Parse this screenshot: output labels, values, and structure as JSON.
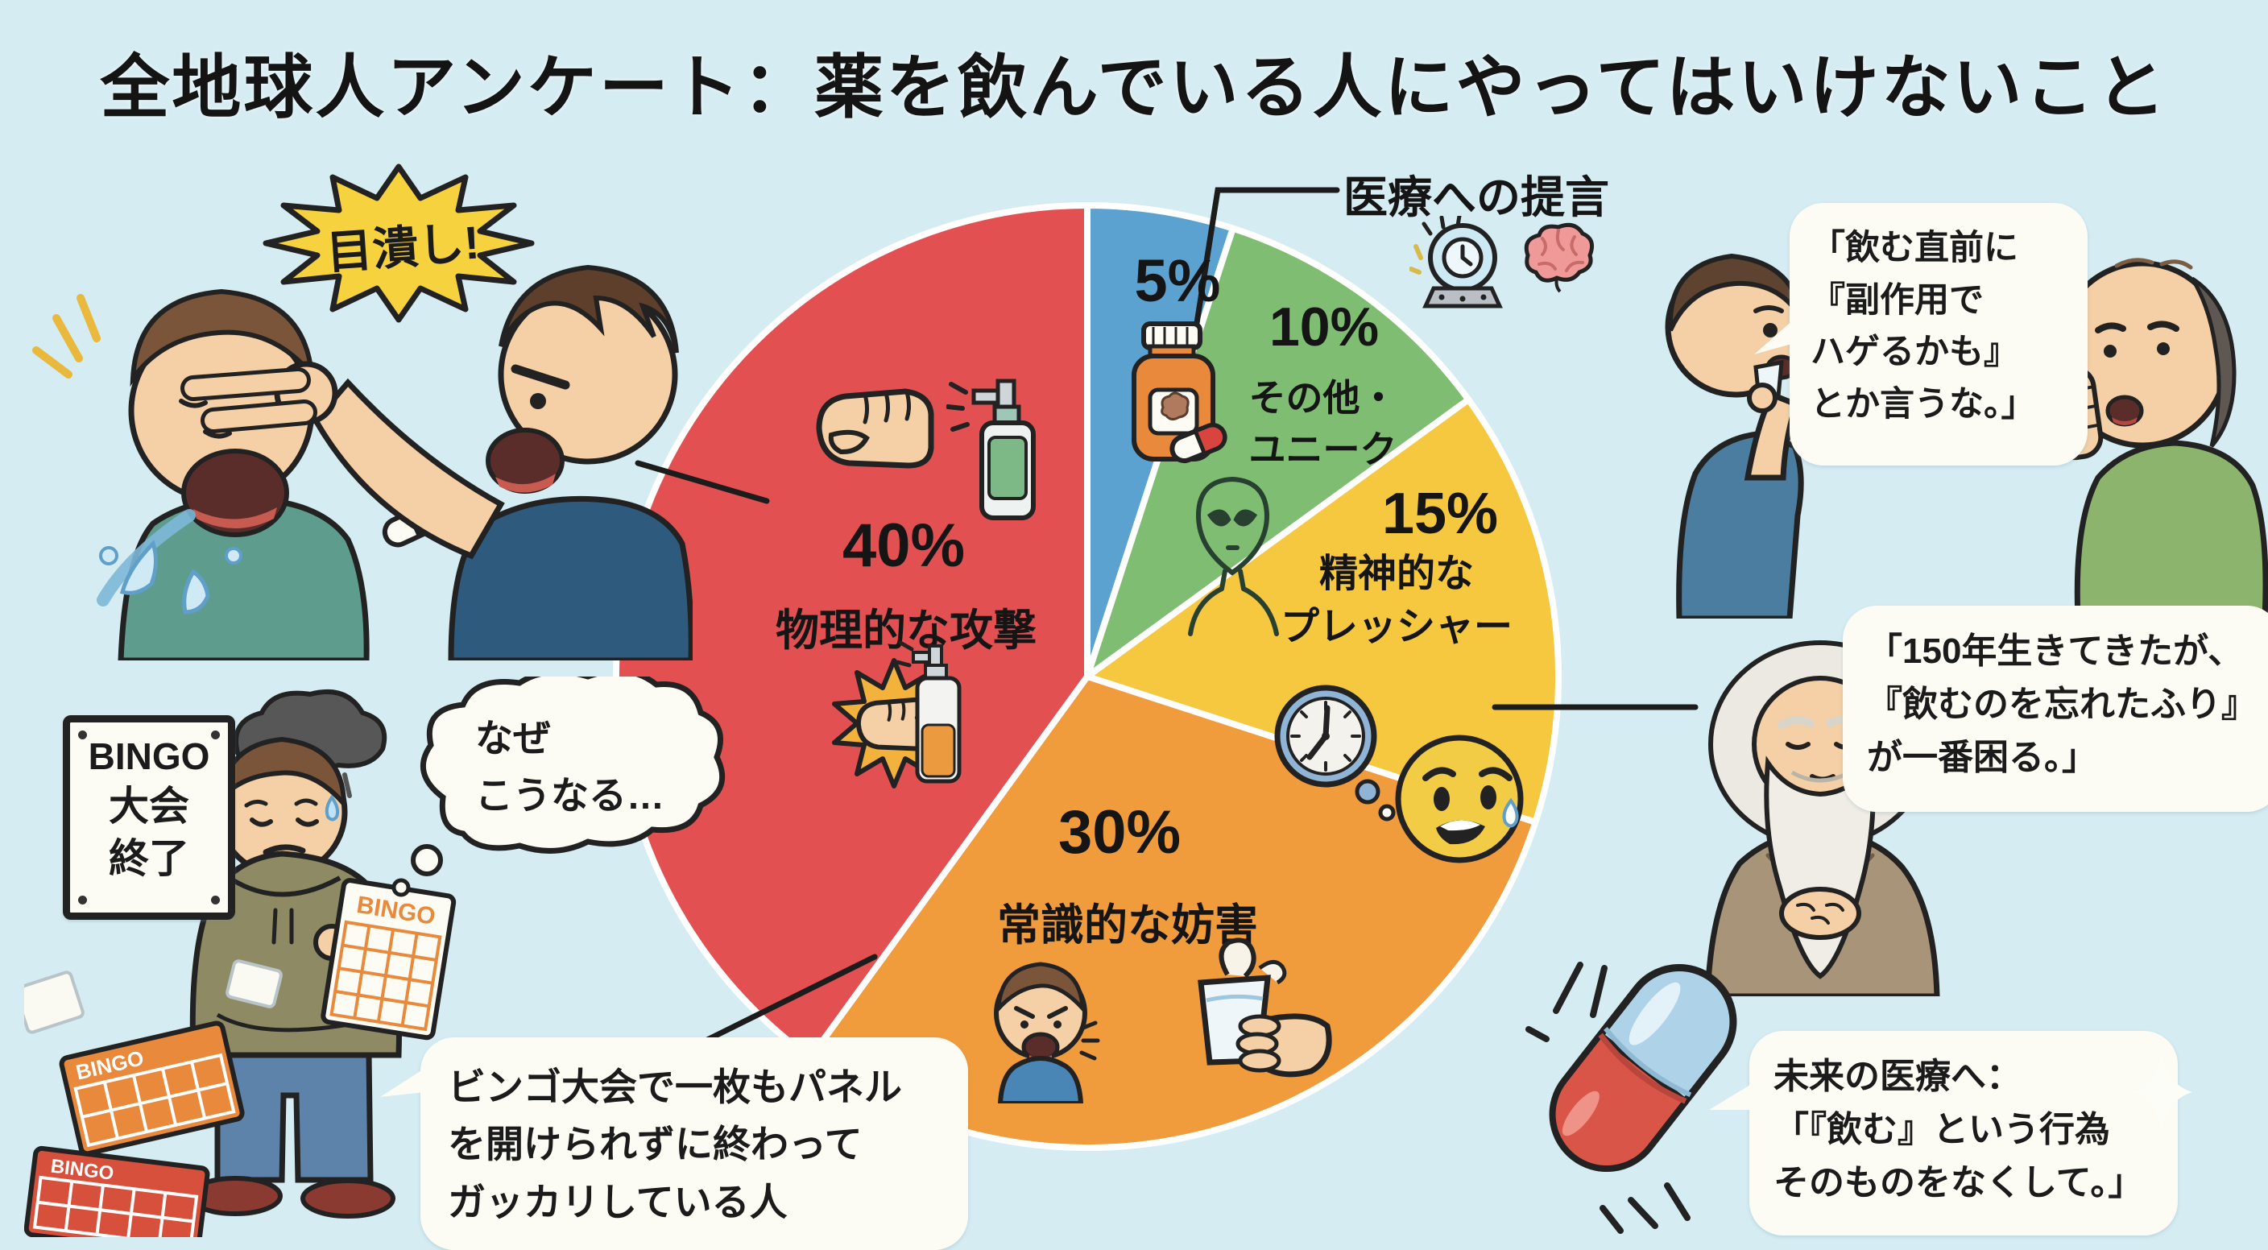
{
  "title": "全地球人アンケート：薬を飲んでいる人にやってはいけないこと",
  "chart_data": {
    "type": "pie",
    "title": "薬を飲んでいる人にやってはいけないこと",
    "start_angle_deg": 0,
    "direction": "clockwise",
    "legend": "labels-inside-slices",
    "slices": [
      {
        "label": "医療への提言",
        "pct": "5%",
        "value": 5,
        "color": "#5ba2d0",
        "label_lines": []
      },
      {
        "label": "その他・ユニーク",
        "pct": "10%",
        "value": 10,
        "color": "#7fbd72",
        "label_lines": [
          "その他・",
          "ユニーク"
        ]
      },
      {
        "label": "精神的なプレッシャー",
        "pct": "15%",
        "value": 15,
        "color": "#f5c840",
        "label_lines": [
          "精神的な",
          "プレッシャー"
        ]
      },
      {
        "label": "常識的な妨害",
        "pct": "30%",
        "value": 30,
        "color": "#f09b3c",
        "label_lines": [
          "常識的な妨害"
        ]
      },
      {
        "label": "物理的な攻撃",
        "pct": "40%",
        "value": 40,
        "color": "#e35052",
        "label_lines": [
          "物理的な攻撃"
        ]
      }
    ]
  },
  "bubbles": {
    "burst": "目潰し!",
    "thought_lines": [
      "なぜ",
      "こうなる…"
    ],
    "bingo_sign_lines": [
      "BINGO",
      "大会",
      "終了"
    ],
    "bingo_card_label": "BINGO",
    "caption_lines": [
      "ビンゴ大会で一枚もパネル",
      "を開けられずに終わって",
      "ガッカリしている人"
    ],
    "hage_lines": [
      "「飲む直前に",
      "『副作用で",
      "ハゲるかも』",
      "とか言うな。」"
    ],
    "forget_lines": [
      "「150年生きてきたが、",
      "『飲むのを忘れたふり』",
      "が一番困る。」"
    ],
    "future_lines": [
      "未来の医療へ：",
      "「『飲む』という行為",
      "そのものをなくして。」"
    ]
  },
  "icons": [
    "crystal-ball-icon",
    "brain-icon",
    "pill-bottle-icon",
    "capsule-icon",
    "alien-icon",
    "clock-icon",
    "worried-face-icon",
    "fist-icon",
    "spray-bottle-icon",
    "angry-boy-icon",
    "water-glass-icon",
    "storm-cloud-icon",
    "sparkle-icon",
    "bingo-card-icon"
  ],
  "colors": {
    "background": "#d4ecf2",
    "pie_separator": "#ffffff",
    "text": "#1b1b1b",
    "bubble": "#fcfcf5"
  }
}
